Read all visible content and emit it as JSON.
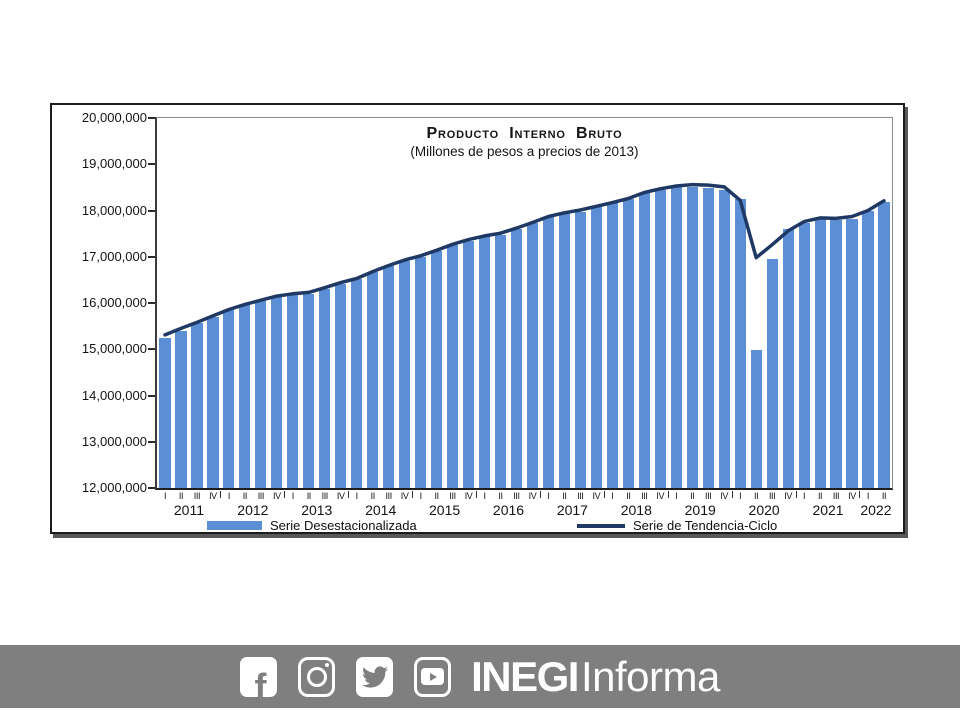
{
  "chart_data": {
    "type": "bar",
    "title": "Producto Interno Bruto",
    "subtitle": "(Millones de pesos a precios de 2013)",
    "legend_position": "bottom",
    "grid": false,
    "y_axis": {
      "min": 12000000,
      "max": 20000000,
      "step": 1000000,
      "tick_labels": [
        "20,000,000",
        "19,000,000",
        "18,000,000",
        "17,000,000",
        "16,000,000",
        "15,000,000",
        "14,000,000",
        "13,000,000",
        "12,000,000"
      ]
    },
    "x_axis": {
      "quarter_labels": [
        "I",
        "II",
        "III",
        "IV",
        "I",
        "II",
        "III",
        "IV",
        "I",
        "II",
        "III",
        "IV",
        "I",
        "II",
        "III",
        "IV",
        "I",
        "II",
        "III",
        "IV",
        "I",
        "II",
        "III",
        "IV",
        "I",
        "II",
        "III",
        "IV",
        "I",
        "II",
        "III",
        "IV",
        "I",
        "II",
        "III",
        "IV",
        "I",
        "II",
        "III",
        "IV",
        "I",
        "II",
        "III",
        "IV",
        "I",
        "II"
      ],
      "years": [
        {
          "label": "2011",
          "quarters": 4
        },
        {
          "label": "2012",
          "quarters": 4
        },
        {
          "label": "2013",
          "quarters": 4
        },
        {
          "label": "2014",
          "quarters": 4
        },
        {
          "label": "2015",
          "quarters": 4
        },
        {
          "label": "2016",
          "quarters": 4
        },
        {
          "label": "2017",
          "quarters": 4
        },
        {
          "label": "2018",
          "quarters": 4
        },
        {
          "label": "2019",
          "quarters": 4
        },
        {
          "label": "2020",
          "quarters": 4
        },
        {
          "label": "2021",
          "quarters": 4
        },
        {
          "label": "2022",
          "quarters": 2
        }
      ]
    },
    "series": [
      {
        "name": "Serie Desestacionalizada",
        "type": "bar",
        "color": "#5B8ED5",
        "values": [
          15250000,
          15400000,
          15560000,
          15700000,
          15850000,
          15960000,
          16050000,
          16130000,
          16180000,
          16200000,
          16310000,
          16420000,
          16510000,
          16660000,
          16790000,
          16910000,
          17000000,
          17120000,
          17260000,
          17350000,
          17440000,
          17460000,
          17600000,
          17720000,
          17860000,
          17940000,
          17970000,
          18100000,
          18160000,
          18250000,
          18380000,
          18450000,
          18500000,
          18500000,
          18480000,
          18450000,
          18250000,
          14980000,
          16950000,
          17590000,
          17740000,
          17820000,
          17790000,
          17820000,
          18000000,
          18180000
        ]
      },
      {
        "name": "Serie de Tendencia-Ciclo",
        "type": "line",
        "color": "#1F3864",
        "values": [
          15310000,
          15450000,
          15580000,
          15720000,
          15860000,
          15970000,
          16060000,
          16150000,
          16200000,
          16230000,
          16330000,
          16440000,
          16530000,
          16680000,
          16810000,
          16930000,
          17020000,
          17140000,
          17270000,
          17370000,
          17450000,
          17510000,
          17620000,
          17740000,
          17870000,
          17950000,
          18010000,
          18090000,
          18170000,
          18260000,
          18390000,
          18470000,
          18530000,
          18560000,
          18550000,
          18510000,
          18220000,
          16980000,
          17260000,
          17560000,
          17760000,
          17840000,
          17830000,
          17870000,
          18000000,
          18210000
        ]
      }
    ]
  },
  "footer": {
    "background": "#7F7F7F",
    "icons": [
      {
        "name": "facebook-icon",
        "glyph": "f"
      },
      {
        "name": "instagram-icon",
        "glyph": "camera-outline"
      },
      {
        "name": "twitter-icon",
        "glyph": "bird"
      },
      {
        "name": "youtube-icon",
        "glyph": "play"
      }
    ],
    "brand": {
      "bold": "INEGI",
      "regular": "Informa"
    }
  }
}
